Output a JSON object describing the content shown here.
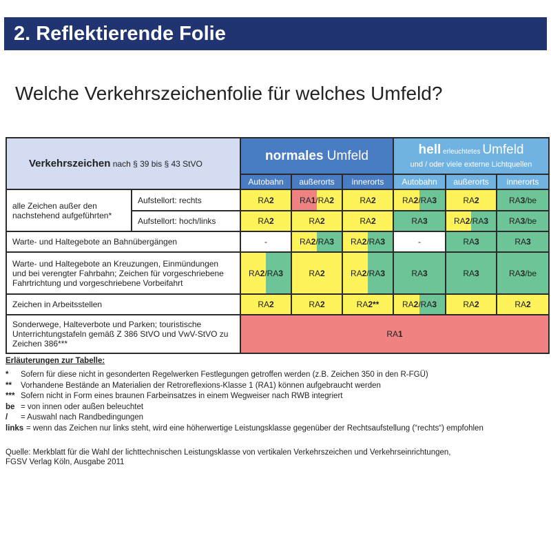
{
  "title": "2. Reflektierende Folie",
  "subtitle": "Welche Verkehrszeichenfolie für welches Umfeld?",
  "colors": {
    "yellow": "#fff35c",
    "green": "#6cc497",
    "red": "#f08282",
    "white": "#ffffff",
    "header_dark": "#1f3470",
    "blue": "#4a7cc4",
    "light_blue": "#70b2e2"
  },
  "table": {
    "header_left_bold": "Verkehrszeichen",
    "header_left_rest": " nach § 39 bis § 43 StVO",
    "normal_bold": "normales",
    "normal_rest": " Umfeld",
    "hell_bold": "hell",
    "hell_small": " erleuchtetes ",
    "hell_rest": "Umfeld",
    "hell_line2": "und / oder viele externe Lichtquellen",
    "columns": [
      "Autobahn",
      "außerorts",
      "innerorts",
      "Autobahn",
      "außerorts",
      "innerorts"
    ],
    "group1_label": "alle Zeichen außer den nachstehend aufgeführten*",
    "rows": [
      {
        "sub": "Aufstellort: rechts",
        "cells": [
          [
            "RA2",
            "y"
          ],
          [
            "RA1/RA2",
            "ry"
          ],
          [
            "RA2",
            "y"
          ],
          [
            "RA2/RA3",
            "yg"
          ],
          [
            "RA2",
            "y"
          ],
          [
            "RA3/be",
            "g"
          ]
        ]
      },
      {
        "sub": "Aufstellort: hoch/links",
        "cells": [
          [
            "RA2",
            "y"
          ],
          [
            "RA2",
            "y"
          ],
          [
            "RA2",
            "y"
          ],
          [
            "RA3",
            "g"
          ],
          [
            "RA2/RA3",
            "yg"
          ],
          [
            "RA3/be",
            "g"
          ]
        ]
      },
      {
        "label": "Warte- und Haltegebote an Bahnübergängen",
        "cells": [
          [
            "-",
            "w"
          ],
          [
            "RA2/RA3",
            "yg"
          ],
          [
            "RA2/RA3",
            "yg"
          ],
          [
            "-",
            "w"
          ],
          [
            "RA3",
            "g"
          ],
          [
            "RA3",
            "g"
          ]
        ]
      },
      {
        "label": "Warte- und Haltegebote an Kreuzungen, Einmündungen und bei verengter Fahrbahn; Zeichen für vorgeschriebene Fahrtrichtung und vorgeschriebene Vorbeifahrt",
        "cells": [
          [
            "RA2/RA3",
            "yg"
          ],
          [
            "RA2",
            "y"
          ],
          [
            "RA2/RA3",
            "yg"
          ],
          [
            "RA3",
            "g"
          ],
          [
            "RA3",
            "g"
          ],
          [
            "RA3/be",
            "g"
          ]
        ]
      },
      {
        "label": "Zeichen in Arbeitsstellen",
        "cells": [
          [
            "RA2",
            "y"
          ],
          [
            "RA2",
            "y"
          ],
          [
            "RA2**",
            "y"
          ],
          [
            "RA2/RA3",
            "yg"
          ],
          [
            "RA2",
            "y"
          ],
          [
            "RA2",
            "y"
          ]
        ]
      },
      {
        "label": "Sonderwege, Halteverbote und Parken; touristische Unterrichtungstafeln gemäß Z 386 StVO und VwV-StVO zu Zeichen 386***",
        "merged": [
          "RA1",
          "r"
        ]
      }
    ]
  },
  "notes": {
    "heading": "Erläuterungen zur Tabelle:",
    "items": [
      {
        "key": "*",
        "text": "Sofern für diese nicht in gesonderten Regelwerken Festlegungen getroffen werden (z.B. Zeichen 350 in den R-FGÜ)"
      },
      {
        "key": "**",
        "text": "Vorhandene Bestände an Materialien der Retroreflexions-Klasse 1 (RA1) können aufgebraucht werden"
      },
      {
        "key": "***",
        "text": "Sofern nicht in Form eines braunen Farbeinsatzes in einem Wegweiser nach RWB integriert"
      },
      {
        "key": "be",
        "text": "= von innen oder außen beleuchtet"
      },
      {
        "key": "/",
        "text": "= Auswahl nach Randbedingungen"
      },
      {
        "key": "links",
        "text": "= wenn das Zeichen nur links steht, wird eine höherwertige Leistungsklasse gegenüber der Rechtsaufstellung (“rechts“) empfohlen"
      }
    ],
    "source_line1": "Quelle: Merkblatt für die Wahl der lichttechnischen Leistungsklasse von vertikalen Verkehrszeichen und Verkehrseinrichtungen,",
    "source_line2": "FGSV Verlag Köln, Ausgabe 2011"
  }
}
